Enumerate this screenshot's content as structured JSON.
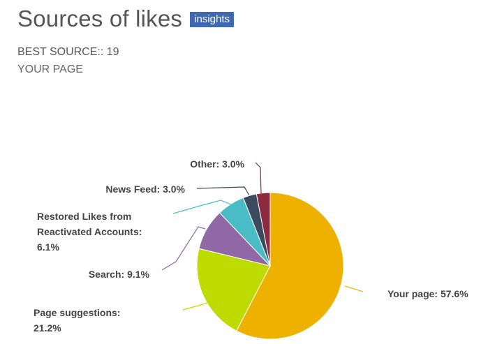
{
  "header": {
    "title": "Sources of likes",
    "badge": "insights"
  },
  "summary": {
    "best_label": "BEST SOURCE:: 19",
    "best_value": "YOUR PAGE"
  },
  "chart_data": {
    "type": "pie",
    "title": "",
    "slices": [
      {
        "name": "Your page",
        "value": 57.6,
        "label": "Your page: 57.6%",
        "color": "#eeb100"
      },
      {
        "name": "Page suggestions",
        "value": 21.2,
        "label_lines": [
          "Page suggestions:",
          "21.2%"
        ],
        "color": "#bedb00"
      },
      {
        "name": "Search",
        "value": 9.1,
        "label": "Search: 9.1%",
        "color": "#9068a6"
      },
      {
        "name": "Restored Likes from Reactivated Accounts",
        "value": 6.1,
        "label_lines": [
          "Restored Likes from",
          "Reactivated Accounts:",
          "6.1%"
        ],
        "color": "#49bcc6"
      },
      {
        "name": "News Feed",
        "value": 3.0,
        "label": "News Feed: 3.0%",
        "color": "#3b4a5e"
      },
      {
        "name": "Other",
        "value": 3.0,
        "label": "Other: 3.0%",
        "color": "#8c2a3e"
      }
    ]
  }
}
